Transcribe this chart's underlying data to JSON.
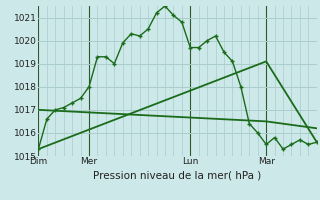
{
  "background_color": "#cce8e8",
  "grid_color": "#aacccc",
  "line_color": "#1a6b1a",
  "title": "Pression niveau de la mer( hPa )",
  "ylim": [
    1015,
    1021.5
  ],
  "yticks": [
    1015,
    1016,
    1017,
    1018,
    1019,
    1020,
    1021
  ],
  "day_labels": [
    "Dim",
    "Mer",
    "Lun",
    "Mar"
  ],
  "day_positions": [
    0,
    12,
    36,
    54
  ],
  "xlim": [
    0,
    66
  ],
  "series1_x": [
    0,
    2,
    4,
    6,
    8,
    10,
    12,
    14,
    16,
    18,
    20,
    22,
    24,
    26,
    28,
    30,
    32,
    34,
    36,
    38,
    40,
    42,
    44,
    46,
    48,
    50,
    52,
    54,
    56,
    58,
    60,
    62,
    64,
    66
  ],
  "series1_y": [
    1015.3,
    1016.6,
    1017.0,
    1017.1,
    1017.3,
    1017.5,
    1018.0,
    1019.3,
    1019.3,
    1019.0,
    1019.9,
    1020.3,
    1020.2,
    1020.5,
    1021.2,
    1021.5,
    1021.1,
    1020.8,
    1019.7,
    1019.7,
    1020.0,
    1020.2,
    1019.5,
    1019.1,
    1018.0,
    1016.4,
    1016.0,
    1015.5,
    1015.8,
    1015.3,
    1015.5,
    1015.7,
    1015.5,
    1015.6
  ],
  "series2_x": [
    0,
    54,
    66
  ],
  "series2_y": [
    1015.3,
    1019.1,
    1015.6
  ],
  "series3_x": [
    0,
    54,
    66
  ],
  "series3_y": [
    1017.0,
    1016.5,
    1016.2
  ]
}
